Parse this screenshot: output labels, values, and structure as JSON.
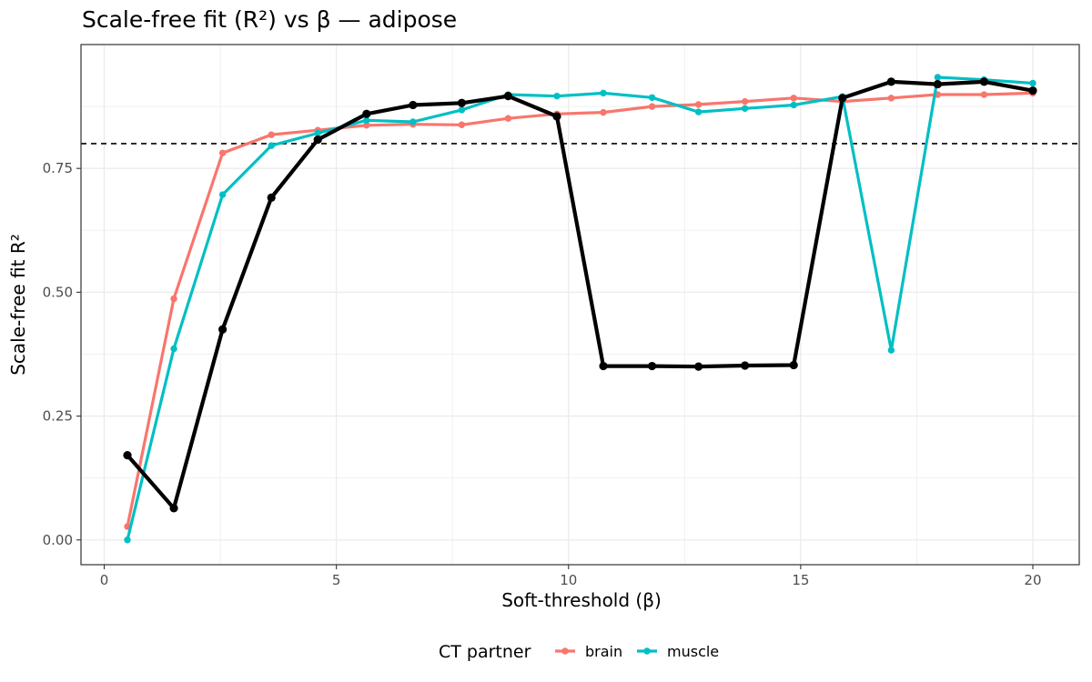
{
  "chart_data": {
    "type": "line",
    "title": "Scale-free fit (R²) vs β — adipose",
    "xlabel": "Soft-threshold (β)",
    "ylabel": "Scale-free fit R²",
    "xlim": [
      -0.5,
      21.0
    ],
    "ylim": [
      -0.05,
      1.0
    ],
    "x_ticks": [
      0,
      5,
      10,
      15,
      20
    ],
    "x_tick_labels": [
      "0",
      "5",
      "10",
      "15",
      "20"
    ],
    "y_ticks": [
      0.0,
      0.25,
      0.5,
      0.75
    ],
    "y_tick_labels": [
      "0.00",
      "0.25",
      "0.50",
      "0.75"
    ],
    "grid": true,
    "reference_line": {
      "y": 0.8,
      "style": "dashed",
      "color": "#000000"
    },
    "legend": {
      "title": "CT partner",
      "placement": "bottom",
      "entries": [
        {
          "label": "brain",
          "color": "#F8766D"
        },
        {
          "label": "muscle",
          "color": "#00BFC4"
        }
      ]
    },
    "x": [
      0.5,
      1.5,
      2.55,
      3.6,
      4.6,
      5.65,
      6.65,
      7.7,
      8.7,
      9.75,
      10.75,
      11.8,
      12.8,
      13.8,
      14.85,
      15.9,
      16.95,
      17.95,
      18.95,
      20.0
    ],
    "series": [
      {
        "key": "adipose",
        "color": "#000000",
        "values": [
          0.171,
          0.064,
          0.425,
          0.691,
          0.808,
          0.86,
          0.878,
          0.882,
          0.896,
          0.855,
          0.351,
          0.351,
          0.35,
          0.352,
          0.353,
          0.892,
          0.925,
          0.92,
          0.925,
          0.907
        ]
      },
      {
        "name": "brain",
        "color": "#F8766D",
        "values": [
          0.027,
          0.487,
          0.781,
          0.818,
          0.827,
          0.837,
          0.839,
          0.838,
          0.851,
          0.86,
          0.863,
          0.875,
          0.879,
          0.885,
          0.892,
          0.885,
          0.892,
          0.899,
          0.899,
          0.902
        ]
      },
      {
        "name": "muscle",
        "color": "#00BFC4",
        "values": [
          0.0,
          0.386,
          0.697,
          0.796,
          0.821,
          0.847,
          0.844,
          0.868,
          0.899,
          0.896,
          0.902,
          0.893,
          0.864,
          0.871,
          0.878,
          0.895,
          0.383,
          0.934,
          0.929,
          0.922
        ]
      }
    ]
  }
}
